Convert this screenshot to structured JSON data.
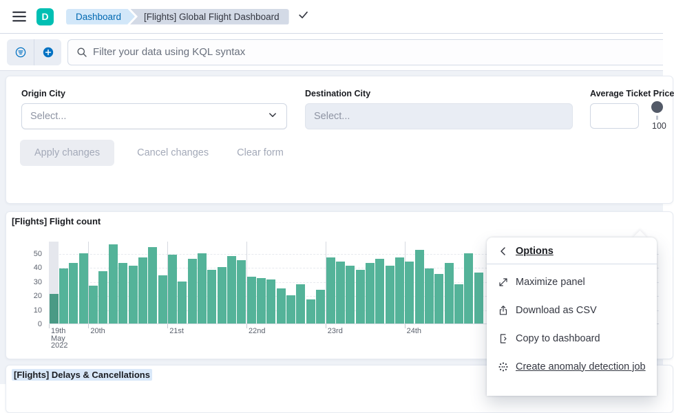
{
  "header": {
    "logo_letter": "D",
    "breadcrumbs": [
      {
        "label": "Dashboard"
      },
      {
        "label": "[Flights] Global Flight Dashboard"
      }
    ]
  },
  "query_bar": {
    "placeholder": "Filter your data using KQL syntax"
  },
  "filter_form": {
    "origin_city": {
      "label": "Origin City",
      "placeholder": "Select..."
    },
    "destination_city": {
      "label": "Destination City",
      "placeholder": "Select..."
    },
    "average_ticket_price": {
      "label": "Average Ticket Price",
      "value": "",
      "slider_min_label": "100"
    },
    "actions": {
      "apply": "Apply changes",
      "cancel": "Cancel changes",
      "clear": "Clear form"
    }
  },
  "panels": {
    "flight_count_title": "[Flights] Flight count",
    "delays_title": "[Flights] Delays & Cancellations"
  },
  "chart_data": {
    "type": "bar",
    "title": "[Flights] Flight count",
    "values": [
      21,
      39,
      43,
      50,
      27,
      37,
      56,
      43,
      41,
      47,
      54,
      34,
      49,
      30,
      46,
      50,
      38,
      40,
      48,
      45,
      33,
      32,
      31,
      25,
      20,
      28,
      17,
      24,
      47,
      44,
      41,
      38,
      43,
      46,
      41,
      47,
      44,
      52,
      39,
      35,
      43,
      28,
      50,
      36
    ],
    "bucket_hours": 3,
    "yticks": [
      0,
      10,
      20,
      30,
      40,
      50
    ],
    "ylim": [
      0,
      58.5
    ],
    "x_day_ticks": [
      {
        "label": "19th\nMay\n2022",
        "bar_index": 0
      },
      {
        "label": "20th",
        "bar_index": 4
      },
      {
        "label": "21st",
        "bar_index": 12
      },
      {
        "label": "22nd",
        "bar_index": 20
      },
      {
        "label": "23rd",
        "bar_index": 28
      },
      {
        "label": "24th",
        "bar_index": 36
      }
    ],
    "grid": true,
    "legend_position": "none",
    "bar_color": "#54B399",
    "first_bar_color": "#4a9a85",
    "partial_band": {
      "bar_index": 0,
      "color": "#e5e7ed"
    }
  },
  "context_menu": {
    "title": "Options",
    "items": [
      {
        "label": "Maximize panel",
        "icon": "maximize-icon"
      },
      {
        "label": "Download as CSV",
        "icon": "export-icon"
      },
      {
        "label": "Copy to dashboard",
        "icon": "copy-icon"
      },
      {
        "label": "Create anomaly detection job",
        "icon": "ml-icon",
        "underlined": true
      }
    ]
  },
  "colors": {
    "brand_teal": "#00BFB3",
    "primary_blue": "#0071c2",
    "bar_green": "#54B399",
    "breadcrumb_blue_bg": "#d2e7f9",
    "breadcrumb_gray_bg": "#d3dae6",
    "page_bg": "#eff2f7"
  }
}
